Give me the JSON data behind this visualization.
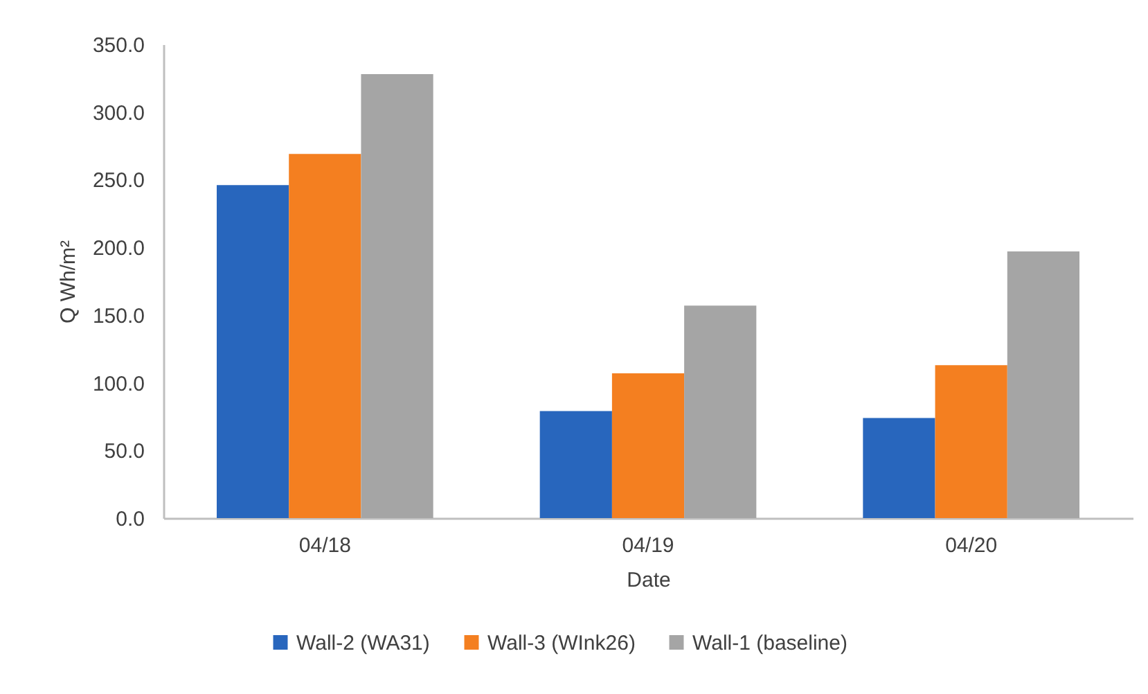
{
  "chart_data": {
    "type": "bar",
    "xlabel": "Date",
    "ylabel": "Q Wh/m²",
    "categories": [
      "04/18",
      "04/19",
      "04/20"
    ],
    "series": [
      {
        "name": "Wall-2 (WA31)",
        "color": "#2866bd",
        "values": [
          246,
          79,
          74
        ]
      },
      {
        "name": "Wall-3 (WInk26)",
        "color": "#f47f20",
        "values": [
          269,
          107,
          113
        ]
      },
      {
        "name": "Wall-1 (baseline)",
        "color": "#a5a5a5",
        "values": [
          328,
          157,
          197
        ]
      }
    ],
    "ylim": [
      0,
      350
    ],
    "yticks": [
      {
        "value": 0,
        "label": "0.0"
      },
      {
        "value": 50,
        "label": "50.0"
      },
      {
        "value": 100,
        "label": "100.0"
      },
      {
        "value": 150,
        "label": "150.0"
      },
      {
        "value": 200,
        "label": "200.0"
      },
      {
        "value": 250,
        "label": "250.0"
      },
      {
        "value": 300,
        "label": "300.0"
      },
      {
        "value": 350,
        "label": "350.0"
      }
    ],
    "legend": "bottom",
    "grid": false
  }
}
